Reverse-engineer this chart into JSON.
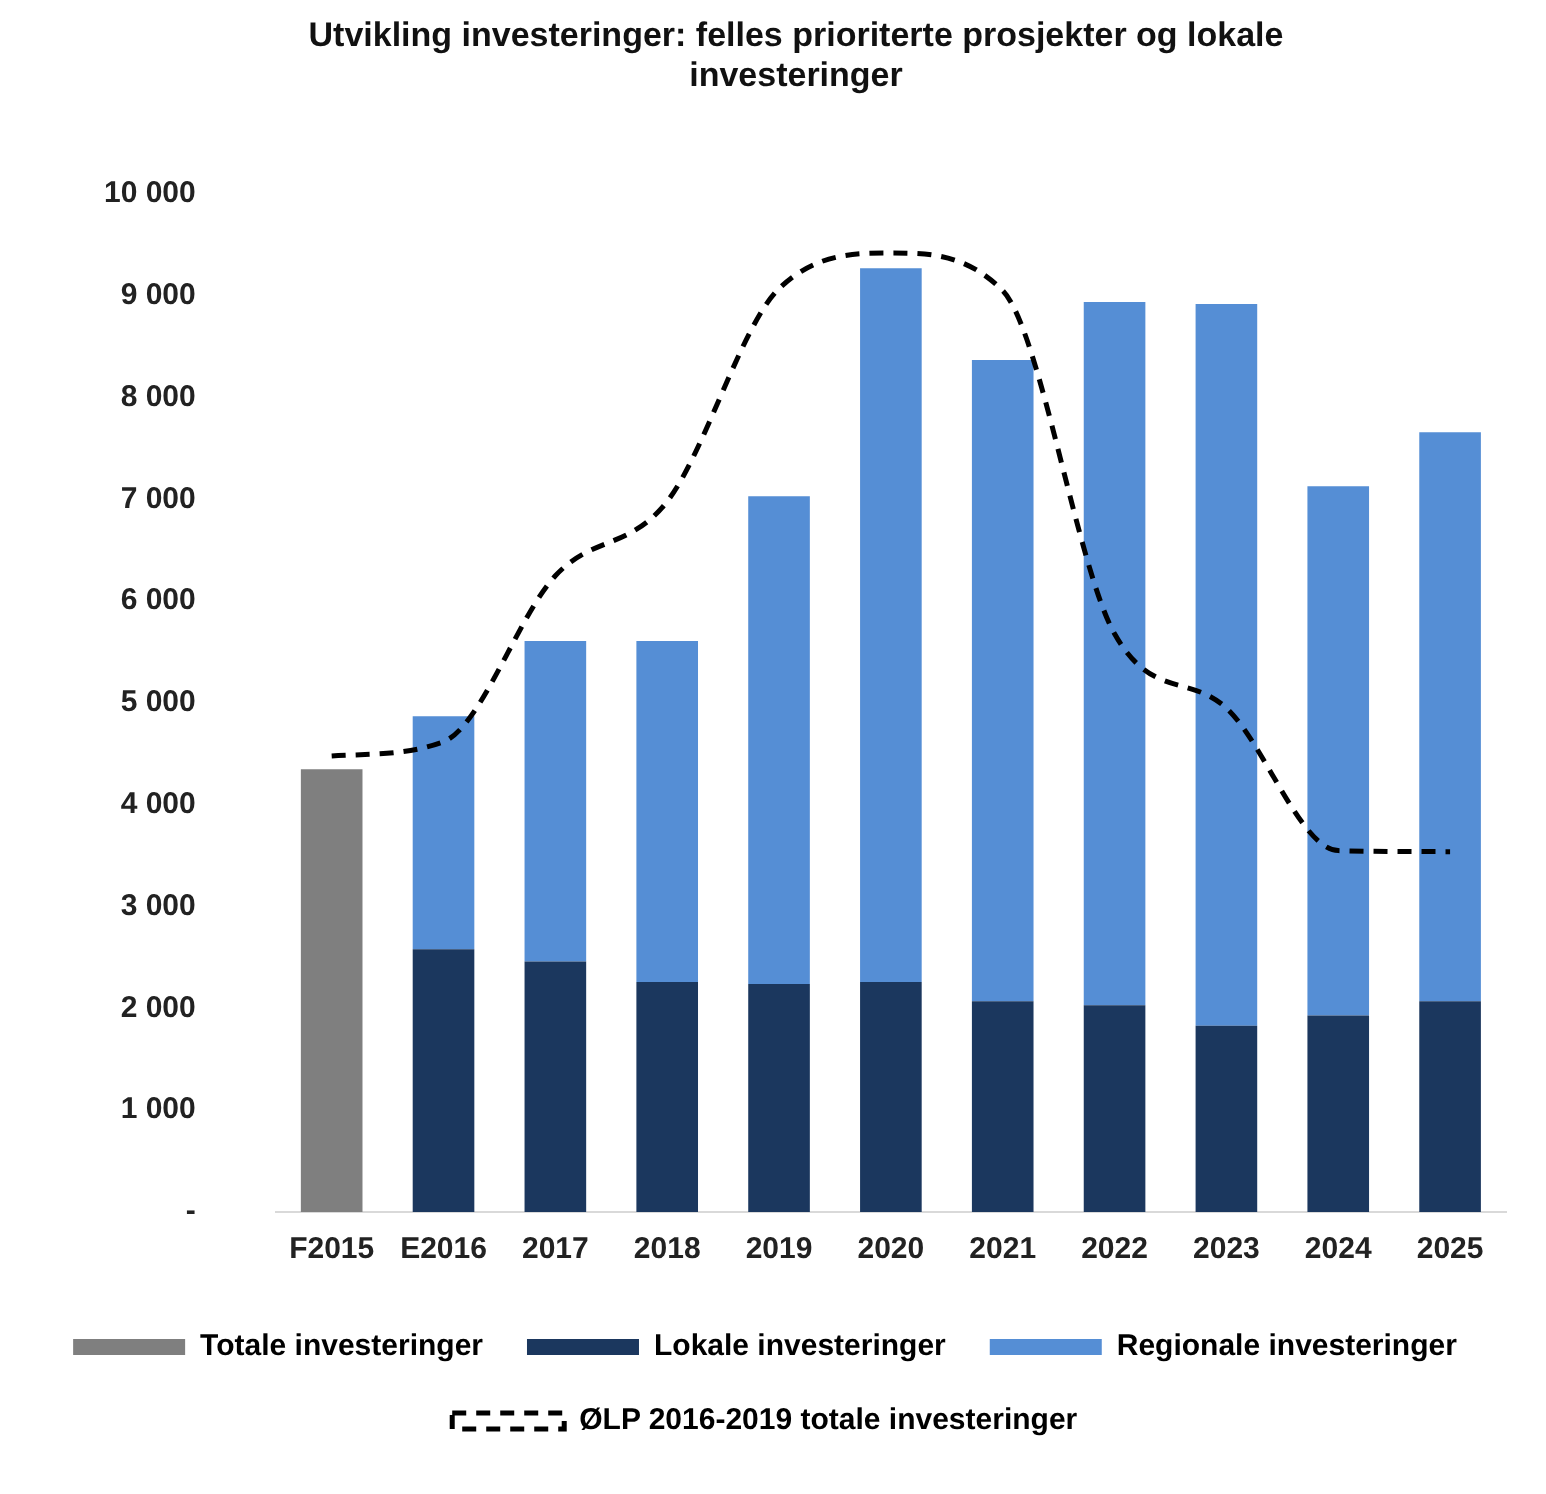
{
  "chart_data": {
    "type": "bar",
    "title": "Utvikling investeringer: felles prioriterte prosjekter og lokale investeringer",
    "categories": [
      "F2015",
      "E2016",
      "2017",
      "2018",
      "2019",
      "2020",
      "2021",
      "2022",
      "2023",
      "2024",
      "2025"
    ],
    "stacked": true,
    "series": [
      {
        "name": "Totale investeringer",
        "color": "#7f7f7f",
        "values": [
          4350,
          null,
          null,
          null,
          null,
          null,
          null,
          null,
          null,
          null,
          null
        ]
      },
      {
        "name": "Lokale investeringer",
        "color": "#1b375e",
        "values": [
          null,
          2580,
          2460,
          2260,
          2240,
          2260,
          2070,
          2030,
          1830,
          1930,
          2070
        ]
      },
      {
        "name": "Regionale investeringer",
        "color": "#558ed5",
        "values": [
          null,
          2290,
          3150,
          3350,
          4790,
          7010,
          6300,
          6910,
          7090,
          5200,
          5590
        ]
      },
      {
        "name": "ØLP 2016-2019 totale investeringer",
        "type": "line",
        "color": "#000000",
        "line_style": "dashed",
        "values": [
          4480,
          4620,
          6250,
          6980,
          9070,
          9420,
          9050,
          5680,
          4950,
          3550,
          3540
        ]
      }
    ],
    "ylim": [
      0,
      10000
    ],
    "yticks": [
      {
        "value": 0,
        "label": "-"
      },
      {
        "value": 1000,
        "label": "1 000"
      },
      {
        "value": 2000,
        "label": "2 000"
      },
      {
        "value": 3000,
        "label": "3 000"
      },
      {
        "value": 4000,
        "label": "4 000"
      },
      {
        "value": 5000,
        "label": "5 000"
      },
      {
        "value": 6000,
        "label": "6 000"
      },
      {
        "value": 7000,
        "label": "7 000"
      },
      {
        "value": 8000,
        "label": "8 000"
      },
      {
        "value": 9000,
        "label": "9 000"
      },
      {
        "value": 10000,
        "label": "10 000"
      }
    ],
    "grid": false,
    "legend": "bottom",
    "marker": "none"
  }
}
